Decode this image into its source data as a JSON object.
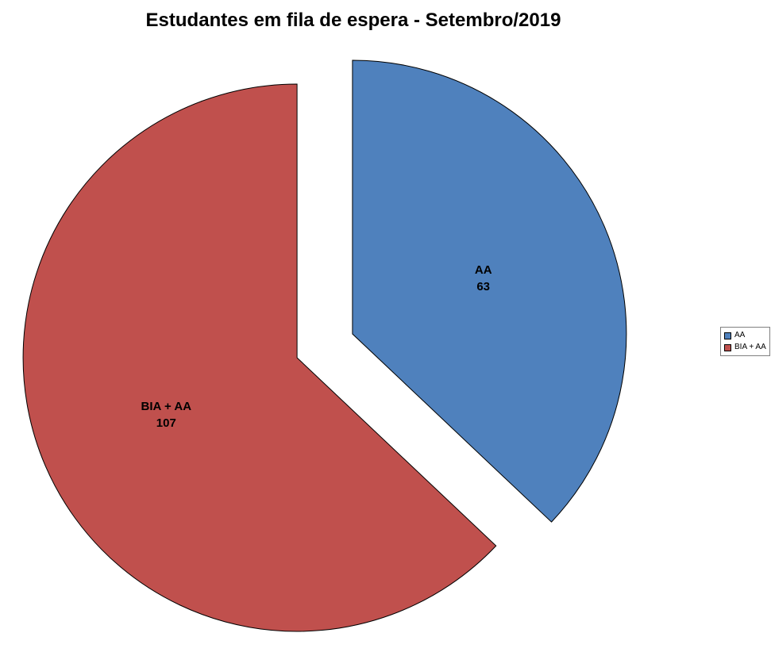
{
  "chart_data": {
    "type": "pie",
    "title": "Estudantes em fila de espera - Setembro/2019",
    "categories": [
      "AA",
      "BIA + AA"
    ],
    "values": [
      63,
      107
    ],
    "colors": [
      "#4F81BD",
      "#C0504D"
    ],
    "slice_labels": [
      {
        "name": "AA",
        "value": "63"
      },
      {
        "name": "BIA + AA",
        "value": "107"
      }
    ],
    "legend_position": "right",
    "start_angle": 0,
    "direction": "clockwise",
    "exploded": true
  }
}
